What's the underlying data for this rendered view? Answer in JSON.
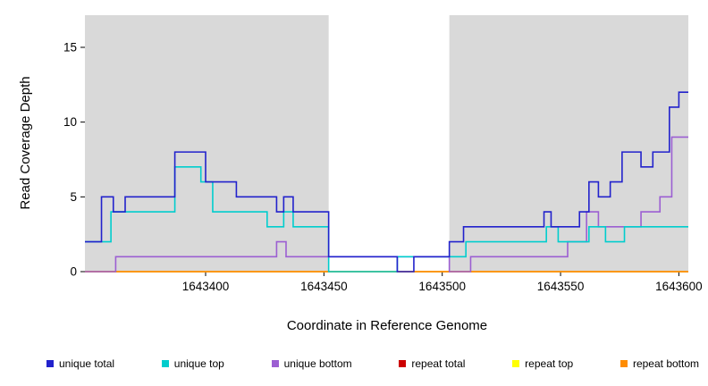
{
  "chart_data": {
    "type": "line",
    "step": true,
    "title": "",
    "xlabel": "Coordinate in Reference Genome",
    "ylabel": "Read Coverage Depth",
    "xlim": [
      1643349,
      1643604
    ],
    "ylim": [
      0,
      17.15
    ],
    "xticks": [
      1643400,
      1643450,
      1643500,
      1643550,
      1643600
    ],
    "yticks": [
      0,
      5,
      10,
      15
    ],
    "panel_bg": "#d9d9d9",
    "gap_band": {
      "from": 1643452,
      "to": 1643503,
      "color": "#ffffff"
    },
    "series": [
      {
        "name": "unique total",
        "color": "#2222cc",
        "points": [
          [
            1643349,
            2
          ],
          [
            1643356,
            5
          ],
          [
            1643361,
            4
          ],
          [
            1643366,
            5
          ],
          [
            1643387,
            8
          ],
          [
            1643400,
            6
          ],
          [
            1643413,
            5
          ],
          [
            1643430,
            4
          ],
          [
            1643433,
            5
          ],
          [
            1643437,
            4
          ],
          [
            1643452,
            1
          ],
          [
            1643481,
            0
          ],
          [
            1643488,
            1
          ],
          [
            1643503,
            2
          ],
          [
            1643509,
            3
          ],
          [
            1643543,
            4
          ],
          [
            1643546,
            3
          ],
          [
            1643558,
            4
          ],
          [
            1643562,
            6
          ],
          [
            1643566,
            5
          ],
          [
            1643571,
            6
          ],
          [
            1643576,
            8
          ],
          [
            1643584,
            7
          ],
          [
            1643589,
            8
          ],
          [
            1643596,
            11
          ],
          [
            1643600,
            12
          ]
        ]
      },
      {
        "name": "unique top",
        "color": "#00cdcd",
        "points": [
          [
            1643349,
            2
          ],
          [
            1643360,
            4
          ],
          [
            1643387,
            7
          ],
          [
            1643398,
            6
          ],
          [
            1643403,
            4
          ],
          [
            1643426,
            3
          ],
          [
            1643433,
            4
          ],
          [
            1643437,
            3
          ],
          [
            1643452,
            0
          ],
          [
            1643481,
            1
          ],
          [
            1643510,
            2
          ],
          [
            1643544,
            3
          ],
          [
            1643549,
            2
          ],
          [
            1643562,
            3
          ],
          [
            1643569,
            2
          ],
          [
            1643577,
            3
          ]
        ]
      },
      {
        "name": "unique bottom",
        "color": "#9c5fd2",
        "points": [
          [
            1643349,
            0
          ],
          [
            1643362,
            1
          ],
          [
            1643430,
            2
          ],
          [
            1643434,
            1
          ],
          [
            1643503,
            0
          ],
          [
            1643512,
            1
          ],
          [
            1643553,
            2
          ],
          [
            1643561,
            4
          ],
          [
            1643566,
            3
          ],
          [
            1643584,
            4
          ],
          [
            1643592,
            5
          ],
          [
            1643597,
            9
          ]
        ]
      },
      {
        "name": "repeat total",
        "color": "#cc0000",
        "points": [
          [
            1643349,
            0
          ]
        ]
      },
      {
        "name": "repeat top",
        "color": "#ffff00",
        "points": [
          [
            1643349,
            0
          ]
        ]
      },
      {
        "name": "repeat bottom",
        "color": "#ff8c00",
        "points": [
          [
            1643349,
            0
          ]
        ]
      }
    ],
    "draw_order": [
      "repeat total",
      "repeat top",
      "repeat bottom",
      "unique bottom",
      "unique top",
      "unique total"
    ],
    "legend": [
      {
        "label": "unique total"
      },
      {
        "label": "unique top"
      },
      {
        "label": "unique bottom"
      },
      {
        "label": "repeat total"
      },
      {
        "label": "repeat top"
      },
      {
        "label": "repeat bottom"
      }
    ]
  }
}
